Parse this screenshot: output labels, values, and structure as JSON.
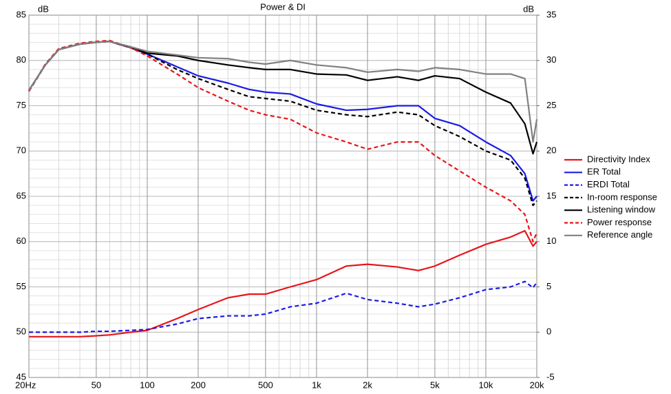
{
  "chart_data": {
    "type": "line",
    "title": "Power & DI",
    "y_label": "dB",
    "y2_label": "dB",
    "log_x": true,
    "grid": true,
    "legend": "right",
    "x": [
      20,
      25,
      30,
      40,
      50,
      60,
      80,
      100,
      150,
      200,
      300,
      400,
      500,
      700,
      1000,
      1500,
      2000,
      3000,
      4000,
      5000,
      7000,
      10000,
      14000,
      17000,
      19000,
      20000
    ],
    "xlim": [
      20,
      20000
    ],
    "xticks": [
      {
        "value": 20,
        "label": "20Hz"
      },
      50,
      100,
      200,
      500,
      {
        "value": 1000,
        "label": "1k"
      },
      {
        "value": 2000,
        "label": "2k"
      },
      {
        "value": 5000,
        "label": "5k"
      },
      {
        "value": 10000,
        "label": "10k"
      },
      {
        "value": 20000,
        "label": "20k"
      }
    ],
    "xgrid_minor": [
      30,
      40,
      60,
      70,
      80,
      90,
      300,
      400,
      600,
      700,
      800,
      900,
      3000,
      4000,
      6000,
      7000,
      8000,
      9000
    ],
    "ylim": [
      45,
      85
    ],
    "yticks": [
      45,
      50,
      55,
      60,
      65,
      70,
      75,
      80,
      85
    ],
    "ygrid_minor_step": 1,
    "y2lim": [
      -5,
      35
    ],
    "y2ticks": [
      -5,
      0,
      5,
      10,
      15,
      20,
      25,
      30,
      35
    ],
    "series": [
      {
        "name": "Directivity Index",
        "color": "#e8141a",
        "dashed": false,
        "axis": "y2",
        "values": [
          -0.5,
          -0.5,
          -0.5,
          -0.5,
          -0.4,
          -0.3,
          0,
          0.2,
          1.5,
          2.5,
          3.8,
          4.2,
          4.2,
          5,
          5.8,
          7.3,
          7.5,
          7.2,
          6.8,
          7.3,
          8.5,
          9.7,
          10.5,
          11.2,
          9.5,
          10
        ]
      },
      {
        "name": "ER Total",
        "color": "#1a1ae6",
        "dashed": false,
        "values": [
          76.7,
          79.5,
          81.2,
          81.8,
          82,
          82.1,
          81.4,
          80.7,
          79.3,
          78.3,
          77.5,
          76.8,
          76.5,
          76.3,
          75.2,
          74.5,
          74.6,
          75,
          75,
          73.6,
          72.8,
          71,
          69.5,
          67.5,
          64.5,
          65
        ]
      },
      {
        "name": "ERDI Total",
        "color": "#1a1ae6",
        "dashed": true,
        "axis": "y2",
        "values": [
          0,
          0,
          0,
          0,
          0.1,
          0.1,
          0.2,
          0.3,
          0.9,
          1.5,
          1.8,
          1.8,
          2,
          2.8,
          3.2,
          4.3,
          3.6,
          3.2,
          2.8,
          3.1,
          3.8,
          4.7,
          5,
          5.6,
          4.9,
          5.5
        ]
      },
      {
        "name": "In-room response",
        "color": "#000000",
        "dashed": true,
        "values": [
          76.6,
          79.5,
          81.2,
          81.8,
          82,
          82.1,
          81.4,
          80.7,
          79,
          78,
          76.8,
          76,
          75.8,
          75.5,
          74.5,
          74,
          73.8,
          74.3,
          74,
          72.8,
          71.6,
          70,
          69,
          67,
          64,
          64.5
        ]
      },
      {
        "name": "Listening window",
        "color": "#000000",
        "dashed": false,
        "values": [
          76.7,
          79.5,
          81.2,
          81.8,
          82,
          82.1,
          81.5,
          80.8,
          80.5,
          80,
          79.5,
          79.2,
          79,
          79,
          78.5,
          78.4,
          77.8,
          78.2,
          77.8,
          78.3,
          78,
          76.5,
          75.3,
          73,
          69.7,
          71
        ]
      },
      {
        "name": "Power response",
        "color": "#e8141a",
        "dashed": true,
        "values": [
          76.6,
          79.6,
          81.3,
          81.9,
          82.1,
          82.2,
          81.4,
          80.5,
          78.5,
          77,
          75.5,
          74.5,
          74,
          73.5,
          72,
          71,
          70.2,
          71,
          71,
          69.5,
          67.8,
          66,
          64.5,
          63,
          60,
          61
        ]
      },
      {
        "name": "Reference angle",
        "color": "#808080",
        "dashed": false,
        "values": [
          76.7,
          79.5,
          81.2,
          81.8,
          82,
          82.1,
          81.5,
          81,
          80.6,
          80.3,
          80.2,
          79.8,
          79.6,
          80,
          79.5,
          79.2,
          78.7,
          79,
          78.8,
          79.2,
          79,
          78.5,
          78.5,
          78,
          71,
          73.5
        ]
      }
    ]
  }
}
